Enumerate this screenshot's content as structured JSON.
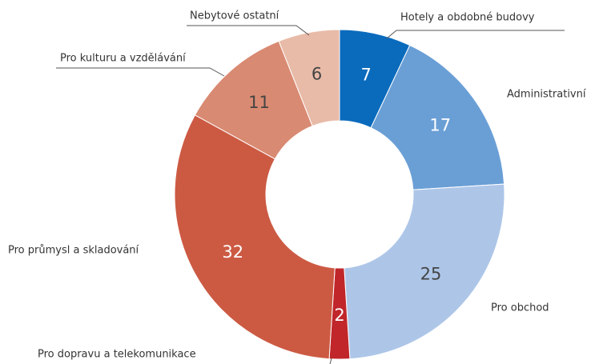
{
  "chart_data": {
    "type": "donut",
    "categories": [
      "Hotely a obdobné budovy",
      "Administrativní",
      "Pro obchod",
      "Pro dopravu a telekomunikace",
      "Pro průmysl a skladování",
      "Pro kulturu a vzdělávání",
      "Nebytové ostatní"
    ],
    "values": [
      7,
      17,
      25,
      2,
      32,
      11,
      6
    ],
    "colors": [
      "#0a6bbd",
      "#6a9fd6",
      "#adc6e8",
      "#c0262a",
      "#cc5a43",
      "#d98a72",
      "#e8bba8"
    ]
  }
}
